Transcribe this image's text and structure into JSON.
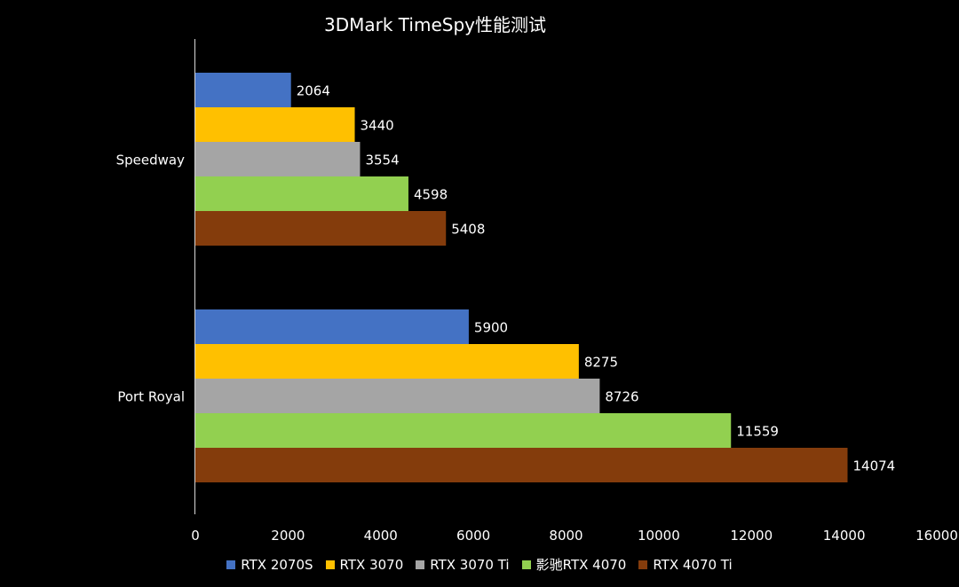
{
  "chart_data": {
    "type": "bar",
    "orientation": "horizontal",
    "title": "3DMark TimeSpy性能测试",
    "categories": [
      "Speedway",
      "Port Royal"
    ],
    "series": [
      {
        "name": "RTX 2070S",
        "color": "#4472C4",
        "values": [
          2064,
          5900
        ]
      },
      {
        "name": "RTX 3070",
        "color": "#FFC000",
        "values": [
          3440,
          8275
        ]
      },
      {
        "name": "RTX 3070 Ti",
        "color": "#A5A5A5",
        "values": [
          3554,
          8726
        ]
      },
      {
        "name": "影驰RTX 4070",
        "color": "#92D050",
        "values": [
          4598,
          11559
        ]
      },
      {
        "name": "RTX 4070 Ti",
        "color": "#843C0C",
        "values": [
          5408,
          14074
        ]
      }
    ],
    "xlim": [
      0,
      16000
    ],
    "xticks": [
      "0",
      "2000",
      "4000",
      "6000",
      "8000",
      "10000",
      "12000",
      "14000",
      "16000"
    ],
    "xlabel": "",
    "ylabel": "",
    "grid": false,
    "legend": "bottom",
    "data_labels": true
  }
}
